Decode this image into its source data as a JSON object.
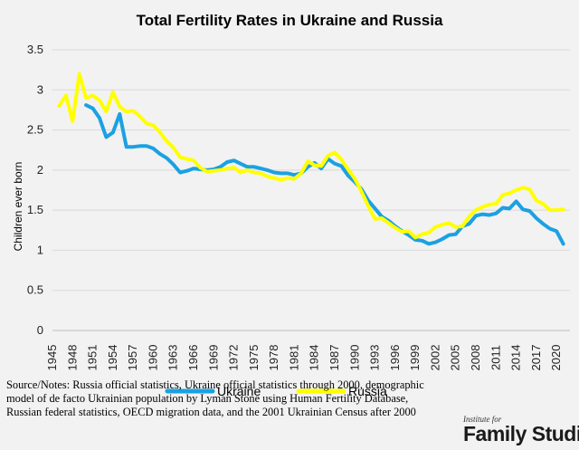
{
  "chart_data": {
    "type": "line",
    "title": "Total Fertility Rates in Ukraine and Russia",
    "xlabel": "",
    "ylabel": "Children ever born",
    "xlim": [
      1945,
      2022
    ],
    "ylim": [
      0,
      3.5
    ],
    "y_ticks": [
      "0",
      "0.5",
      "1",
      "1.5",
      "2",
      "2.5",
      "3",
      "3.5"
    ],
    "x_tick_values": [
      1945,
      1948,
      1951,
      1954,
      1957,
      1960,
      1963,
      1966,
      1969,
      1972,
      1975,
      1978,
      1981,
      1984,
      1987,
      1990,
      1993,
      1996,
      1999,
      2002,
      2005,
      2008,
      2011,
      2014,
      2017,
      2020
    ],
    "x_ticks": [
      "1945",
      "1948",
      "1951",
      "1954",
      "1957",
      "1960",
      "1963",
      "1966",
      "1969",
      "1972",
      "1975",
      "1978",
      "1981",
      "1984",
      "1987",
      "1990",
      "1993",
      "1996",
      "1999",
      "2002",
      "2005",
      "2008",
      "2011",
      "2014",
      "2017",
      "2020"
    ],
    "legend": "bottom-center",
    "grid": true,
    "series": [
      {
        "name": "Ukraine",
        "color": "#1ba1e2",
        "x": [
          1950,
          1951,
          1952,
          1953,
          1954,
          1955,
          1956,
          1957,
          1958,
          1959,
          1960,
          1961,
          1962,
          1963,
          1964,
          1965,
          1966,
          1967,
          1968,
          1969,
          1970,
          1971,
          1972,
          1973,
          1974,
          1975,
          1976,
          1977,
          1978,
          1979,
          1980,
          1981,
          1982,
          1983,
          1984,
          1985,
          1986,
          1987,
          1988,
          1989,
          1990,
          1991,
          1992,
          1993,
          1994,
          1995,
          1996,
          1997,
          1998,
          1999,
          2000,
          2001,
          2002,
          2003,
          2004,
          2005,
          2006,
          2007,
          2008,
          2009,
          2010,
          2011,
          2012,
          2013,
          2014,
          2015,
          2016,
          2017,
          2018,
          2019,
          2020,
          2021
        ],
        "values": [
          2.81,
          2.77,
          2.65,
          2.41,
          2.47,
          2.7,
          2.29,
          2.29,
          2.3,
          2.3,
          2.27,
          2.2,
          2.15,
          2.07,
          1.97,
          1.99,
          2.02,
          2.01,
          2.0,
          2.01,
          2.04,
          2.1,
          2.12,
          2.08,
          2.04,
          2.04,
          2.02,
          2.0,
          1.97,
          1.96,
          1.96,
          1.94,
          1.96,
          2.04,
          2.09,
          2.02,
          2.14,
          2.08,
          2.05,
          1.93,
          1.85,
          1.76,
          1.62,
          1.52,
          1.42,
          1.37,
          1.3,
          1.24,
          1.19,
          1.13,
          1.12,
          1.08,
          1.1,
          1.14,
          1.19,
          1.2,
          1.3,
          1.33,
          1.43,
          1.45,
          1.44,
          1.46,
          1.53,
          1.52,
          1.61,
          1.51,
          1.49,
          1.4,
          1.33,
          1.27,
          1.24,
          1.08
        ]
      },
      {
        "name": "Russia",
        "color": "#ffff00",
        "x": [
          1946,
          1947,
          1948,
          1949,
          1950,
          1951,
          1952,
          1953,
          1954,
          1955,
          1956,
          1957,
          1958,
          1959,
          1960,
          1961,
          1962,
          1963,
          1964,
          1965,
          1966,
          1967,
          1968,
          1969,
          1970,
          1971,
          1972,
          1973,
          1974,
          1975,
          1976,
          1977,
          1978,
          1979,
          1980,
          1981,
          1982,
          1983,
          1984,
          1985,
          1986,
          1987,
          1988,
          1989,
          1990,
          1991,
          1992,
          1993,
          1994,
          1995,
          1996,
          1997,
          1998,
          1999,
          2000,
          2001,
          2002,
          2003,
          2004,
          2005,
          2006,
          2007,
          2008,
          2009,
          2010,
          2011,
          2012,
          2013,
          2014,
          2015,
          2016,
          2017,
          2018,
          2019,
          2020,
          2021
        ],
        "values": [
          2.8,
          2.93,
          2.61,
          3.2,
          2.9,
          2.93,
          2.87,
          2.73,
          2.97,
          2.79,
          2.73,
          2.74,
          2.67,
          2.58,
          2.56,
          2.47,
          2.36,
          2.28,
          2.16,
          2.14,
          2.12,
          2.03,
          1.98,
          1.99,
          2.0,
          2.02,
          2.03,
          1.97,
          2.0,
          1.97,
          1.96,
          1.92,
          1.9,
          1.88,
          1.9,
          1.89,
          1.96,
          2.11,
          2.06,
          2.05,
          2.18,
          2.22,
          2.13,
          2.01,
          1.89,
          1.73,
          1.55,
          1.39,
          1.4,
          1.34,
          1.28,
          1.23,
          1.24,
          1.16,
          1.2,
          1.22,
          1.29,
          1.32,
          1.34,
          1.29,
          1.3,
          1.42,
          1.5,
          1.54,
          1.57,
          1.58,
          1.69,
          1.71,
          1.75,
          1.78,
          1.76,
          1.62,
          1.58,
          1.5,
          1.5,
          1.51
        ]
      }
    ]
  },
  "source_note": {
    "line1": "Source/Notes: Russia official statistics, Ukraine official statistics through 2000, demographic",
    "line2": "model of de facto Ukrainian population by Lyman Stone using Human Fertility Database,",
    "line3": "Russian federal statistics, OECD migration data, and the 2001 Ukrainian Census after 2000"
  },
  "logo": {
    "small": "Institute for",
    "big": "Family Studies"
  }
}
